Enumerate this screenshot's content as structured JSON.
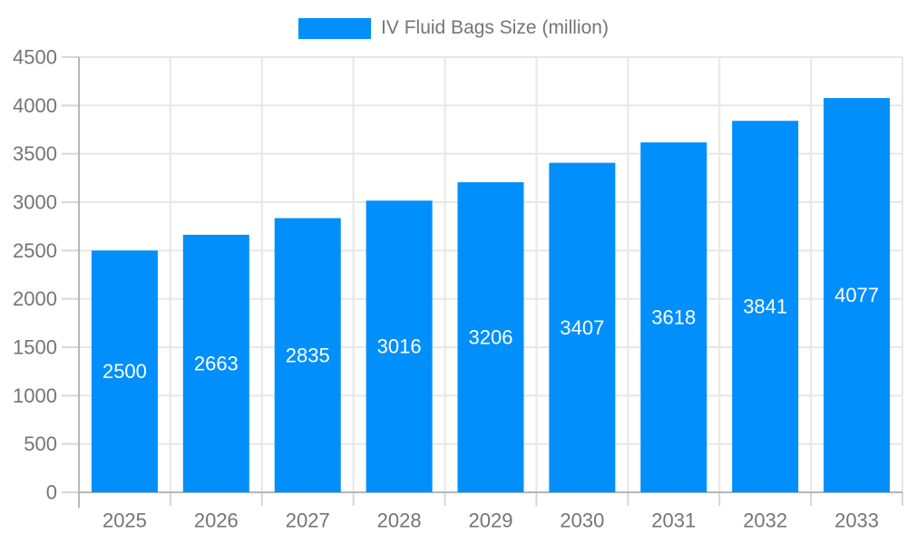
{
  "chart_data": {
    "type": "bar",
    "title": "IV Fluid Bags Size (million)",
    "series_name": "IV Fluid Bags Size (million)",
    "categories": [
      "2025",
      "2026",
      "2027",
      "2028",
      "2029",
      "2030",
      "2031",
      "2032",
      "2033"
    ],
    "values": [
      2500,
      2663,
      2835,
      3016,
      3206,
      3407,
      3618,
      3841,
      4077
    ],
    "value_labels": [
      "2500",
      "2663",
      "2835",
      "3016",
      "3206",
      "3407",
      "3618",
      "3841",
      "4077"
    ],
    "xlabel": "",
    "ylabel": "",
    "ylim": [
      0,
      4500
    ],
    "ytick_step": 500,
    "ytick_labels": [
      "0",
      "500",
      "1000",
      "1500",
      "2000",
      "2500",
      "3000",
      "3500",
      "4000",
      "4500"
    ],
    "grid": true,
    "legend_position": "top",
    "colors": {
      "bar": "#008FFB",
      "bar_label": "#FFFFFF",
      "axis_text": "#757575",
      "legend_text": "#757575",
      "grid_line": "#E7E7E7",
      "axis_line": "#B6B6B6",
      "tick_line": "#D6D6D6",
      "background": "#FFFFFF"
    }
  }
}
